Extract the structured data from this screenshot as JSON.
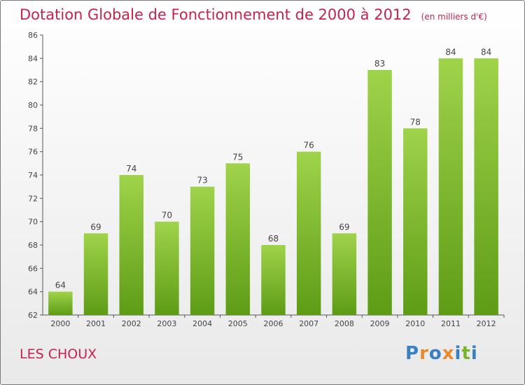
{
  "title": "Dotation Globale de Fonctionnement de 2000 à 2012",
  "subtitle": "(en milliers d'€)",
  "commune": "LES CHOUX",
  "logo": {
    "letters": [
      "P",
      "r",
      "o",
      "x",
      "i",
      "t",
      "i"
    ],
    "colors": [
      "#3a7fc1",
      "#e8892b",
      "#3a7fc1",
      "#e8892b",
      "#3a7fc1",
      "#77b52c",
      "#3a7fc1"
    ]
  },
  "colors": {
    "bar_top": "#9fd34a",
    "bar_bottom": "#5e9c16",
    "title": "#c4234f"
  },
  "chart_data": {
    "type": "bar",
    "title": "Dotation Globale de Fonctionnement de 2000 à 2012",
    "subtitle": "(en milliers d'€)",
    "categories": [
      "2000",
      "2001",
      "2002",
      "2003",
      "2004",
      "2005",
      "2006",
      "2007",
      "2008",
      "2009",
      "2010",
      "2011",
      "2012"
    ],
    "values": [
      64,
      69,
      74,
      70,
      73,
      75,
      68,
      76,
      69,
      83,
      78,
      84,
      84
    ],
    "ylim": [
      62,
      86
    ],
    "yticks": [
      62,
      64,
      66,
      68,
      70,
      72,
      74,
      76,
      78,
      80,
      82,
      84,
      86
    ],
    "grid": false,
    "legend": "none"
  }
}
